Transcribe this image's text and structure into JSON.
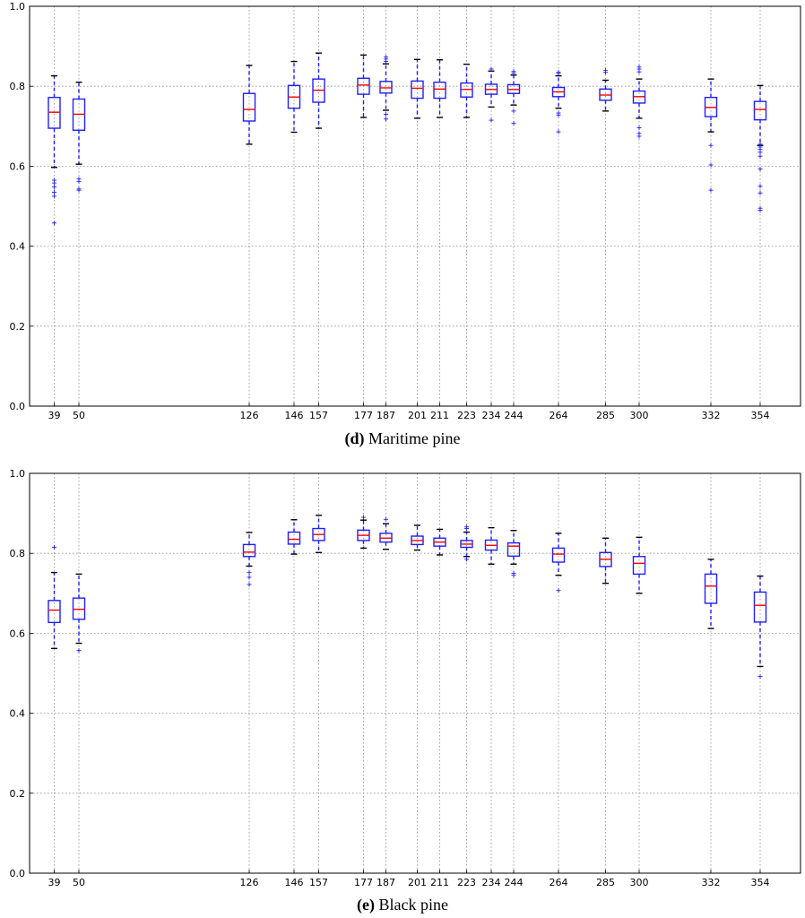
{
  "chart_data": [
    {
      "type": "box",
      "caption_letter": "(d)",
      "caption_text": " Maritime pine",
      "ylim": [
        0.0,
        1.0
      ],
      "yticks": [
        "0.0",
        "0.2",
        "0.4",
        "0.6",
        "0.8",
        "1.0"
      ],
      "xlim": [
        28,
        372
      ],
      "grid": true,
      "categories": [
        "39",
        "50",
        "126",
        "146",
        "157",
        "177",
        "187",
        "201",
        "211",
        "223",
        "234",
        "244",
        "264",
        "285",
        "300",
        "332",
        "354"
      ],
      "positions": [
        39,
        50,
        126,
        146,
        157,
        177,
        187,
        201,
        211,
        223,
        234,
        244,
        264,
        285,
        300,
        332,
        354
      ],
      "boxes": [
        {
          "low": 0.597,
          "q1": 0.695,
          "median": 0.735,
          "q3": 0.772,
          "high": 0.826,
          "fliers": [
            0.458,
            0.525,
            0.535,
            0.548,
            0.558,
            0.565
          ]
        },
        {
          "low": 0.605,
          "q1": 0.69,
          "median": 0.73,
          "q3": 0.768,
          "high": 0.81,
          "fliers": [
            0.54,
            0.543,
            0.562,
            0.568
          ]
        },
        {
          "low": 0.655,
          "q1": 0.713,
          "median": 0.742,
          "q3": 0.782,
          "high": 0.852,
          "fliers": []
        },
        {
          "low": 0.685,
          "q1": 0.745,
          "median": 0.773,
          "q3": 0.802,
          "high": 0.862,
          "fliers": []
        },
        {
          "low": 0.695,
          "q1": 0.76,
          "median": 0.79,
          "q3": 0.818,
          "high": 0.883,
          "fliers": []
        },
        {
          "low": 0.722,
          "q1": 0.78,
          "median": 0.803,
          "q3": 0.82,
          "high": 0.878,
          "fliers": []
        },
        {
          "low": 0.74,
          "q1": 0.783,
          "median": 0.796,
          "q3": 0.812,
          "high": 0.856,
          "fliers": [
            0.718,
            0.73,
            0.862,
            0.868,
            0.873
          ]
        },
        {
          "low": 0.72,
          "q1": 0.77,
          "median": 0.795,
          "q3": 0.813,
          "high": 0.867,
          "fliers": []
        },
        {
          "low": 0.722,
          "q1": 0.77,
          "median": 0.793,
          "q3": 0.81,
          "high": 0.866,
          "fliers": []
        },
        {
          "low": 0.722,
          "q1": 0.773,
          "median": 0.792,
          "q3": 0.808,
          "high": 0.855,
          "fliers": []
        },
        {
          "low": 0.748,
          "q1": 0.78,
          "median": 0.792,
          "q3": 0.805,
          "high": 0.838,
          "fliers": [
            0.715,
            0.843
          ]
        },
        {
          "low": 0.753,
          "q1": 0.782,
          "median": 0.792,
          "q3": 0.804,
          "high": 0.828,
          "fliers": [
            0.707,
            0.738,
            0.833,
            0.837
          ]
        },
        {
          "low": 0.745,
          "q1": 0.774,
          "median": 0.786,
          "q3": 0.797,
          "high": 0.826,
          "fliers": [
            0.686,
            0.728,
            0.733,
            0.832,
            0.835
          ]
        },
        {
          "low": 0.738,
          "q1": 0.765,
          "median": 0.778,
          "q3": 0.793,
          "high": 0.815,
          "fliers": [
            0.835,
            0.84
          ]
        },
        {
          "low": 0.72,
          "q1": 0.758,
          "median": 0.774,
          "q3": 0.788,
          "high": 0.818,
          "fliers": [
            0.675,
            0.682,
            0.696,
            0.836,
            0.843,
            0.848
          ]
        },
        {
          "low": 0.686,
          "q1": 0.724,
          "median": 0.747,
          "q3": 0.772,
          "high": 0.818,
          "fliers": [
            0.54,
            0.603,
            0.652
          ]
        },
        {
          "low": 0.652,
          "q1": 0.716,
          "median": 0.742,
          "q3": 0.762,
          "high": 0.802,
          "fliers": [
            0.49,
            0.495,
            0.533,
            0.55,
            0.593,
            0.625,
            0.635,
            0.642,
            0.648,
            0.655
          ]
        }
      ]
    },
    {
      "type": "box",
      "caption_letter": "(e)",
      "caption_text": " Black pine",
      "ylim": [
        0.0,
        1.0
      ],
      "yticks": [
        "0.0",
        "0.2",
        "0.4",
        "0.6",
        "0.8",
        "1.0"
      ],
      "xlim": [
        28,
        372
      ],
      "grid": true,
      "categories": [
        "39",
        "50",
        "126",
        "146",
        "157",
        "177",
        "187",
        "201",
        "211",
        "223",
        "234",
        "244",
        "264",
        "285",
        "300",
        "332",
        "354"
      ],
      "positions": [
        39,
        50,
        126,
        146,
        157,
        177,
        187,
        201,
        211,
        223,
        234,
        244,
        264,
        285,
        300,
        332,
        354
      ],
      "boxes": [
        {
          "low": 0.562,
          "q1": 0.627,
          "median": 0.658,
          "q3": 0.682,
          "high": 0.752,
          "fliers": [
            0.815
          ]
        },
        {
          "low": 0.575,
          "q1": 0.635,
          "median": 0.66,
          "q3": 0.688,
          "high": 0.748,
          "fliers": [
            0.557
          ]
        },
        {
          "low": 0.768,
          "q1": 0.792,
          "median": 0.803,
          "q3": 0.822,
          "high": 0.852,
          "fliers": [
            0.722,
            0.74,
            0.752
          ]
        },
        {
          "low": 0.798,
          "q1": 0.823,
          "median": 0.835,
          "q3": 0.853,
          "high": 0.884,
          "fliers": []
        },
        {
          "low": 0.802,
          "q1": 0.832,
          "median": 0.847,
          "q3": 0.862,
          "high": 0.895,
          "fliers": []
        },
        {
          "low": 0.813,
          "q1": 0.832,
          "median": 0.845,
          "q3": 0.858,
          "high": 0.883,
          "fliers": [
            0.89
          ]
        },
        {
          "low": 0.81,
          "q1": 0.828,
          "median": 0.838,
          "q3": 0.85,
          "high": 0.874,
          "fliers": [
            0.885
          ]
        },
        {
          "low": 0.808,
          "q1": 0.822,
          "median": 0.832,
          "q3": 0.843,
          "high": 0.87,
          "fliers": []
        },
        {
          "low": 0.796,
          "q1": 0.818,
          "median": 0.828,
          "q3": 0.838,
          "high": 0.86,
          "fliers": []
        },
        {
          "low": 0.792,
          "q1": 0.815,
          "median": 0.823,
          "q3": 0.832,
          "high": 0.853,
          "fliers": [
            0.785,
            0.862,
            0.866
          ]
        },
        {
          "low": 0.773,
          "q1": 0.808,
          "median": 0.82,
          "q3": 0.833,
          "high": 0.864,
          "fliers": []
        },
        {
          "low": 0.773,
          "q1": 0.793,
          "median": 0.818,
          "q3": 0.826,
          "high": 0.857,
          "fliers": [
            0.745,
            0.75
          ]
        },
        {
          "low": 0.745,
          "q1": 0.778,
          "median": 0.798,
          "q3": 0.813,
          "high": 0.85,
          "fliers": [
            0.707
          ]
        },
        {
          "low": 0.725,
          "q1": 0.767,
          "median": 0.785,
          "q3": 0.802,
          "high": 0.838,
          "fliers": []
        },
        {
          "low": 0.7,
          "q1": 0.748,
          "median": 0.775,
          "q3": 0.792,
          "high": 0.84,
          "fliers": []
        },
        {
          "low": 0.612,
          "q1": 0.675,
          "median": 0.718,
          "q3": 0.748,
          "high": 0.785,
          "fliers": []
        },
        {
          "low": 0.517,
          "q1": 0.628,
          "median": 0.67,
          "q3": 0.703,
          "high": 0.743,
          "fliers": [
            0.492
          ]
        }
      ]
    }
  ]
}
